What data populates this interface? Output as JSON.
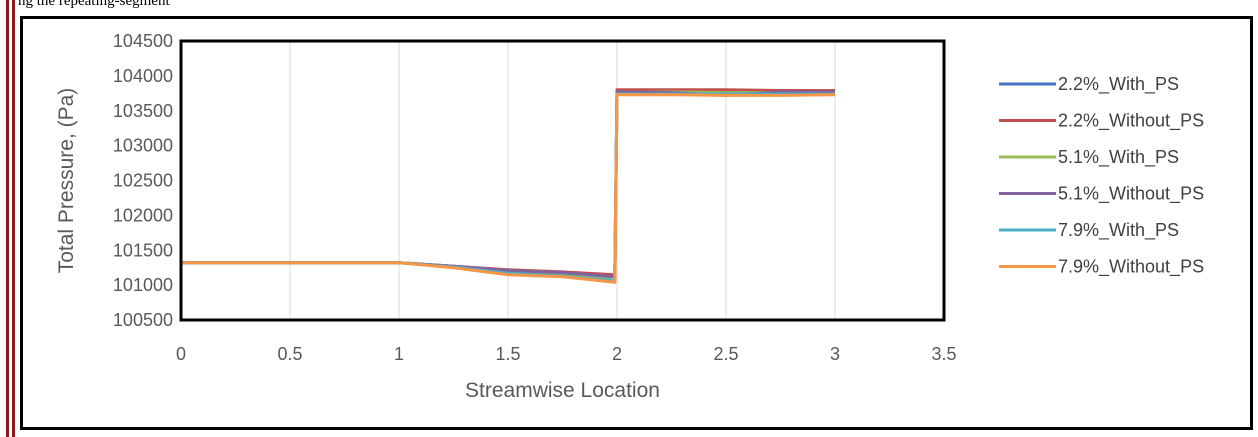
{
  "caption_fragment": "ng the repeating-segment",
  "chart_data": {
    "type": "line",
    "title": "",
    "xlabel": "Streamwise Location",
    "ylabel": "Total Pressure, (Pa)",
    "xlim": [
      0,
      3.5
    ],
    "ylim": [
      100500,
      104500
    ],
    "x_ticks": [
      "0",
      "0.5",
      "1",
      "1.5",
      "2",
      "2.5",
      "3",
      "3.5"
    ],
    "y_ticks": [
      "104500",
      "104000",
      "103500",
      "103000",
      "102500",
      "102000",
      "101500",
      "101000",
      "100500"
    ],
    "grid": "vertical",
    "legend_position": "right",
    "series": [
      {
        "name": "2.2%_With_PS",
        "color": "#4472c4",
        "x": [
          0,
          1,
          1.25,
          1.5,
          1.75,
          1.99,
          2.0,
          2.25,
          2.5,
          2.75,
          3.0
        ],
        "y": [
          101320,
          101320,
          101270,
          101210,
          101170,
          101120,
          103780,
          103780,
          103780,
          103780,
          103780
        ]
      },
      {
        "name": "2.2%_Without_PS",
        "color": "#c0504d",
        "x": [
          0,
          1,
          1.25,
          1.5,
          1.75,
          1.99,
          2.0,
          2.25,
          2.5,
          2.75,
          3.0
        ],
        "y": [
          101320,
          101320,
          101270,
          101220,
          101190,
          101150,
          103800,
          103800,
          103800,
          103790,
          103790
        ]
      },
      {
        "name": "5.1%_With_PS",
        "color": "#9bbb59",
        "x": [
          0,
          1,
          1.25,
          1.5,
          1.75,
          1.99,
          2.0,
          2.25,
          2.5,
          2.75,
          3.0
        ],
        "y": [
          101320,
          101320,
          101270,
          101200,
          101160,
          101100,
          103760,
          103770,
          103760,
          103760,
          103760
        ]
      },
      {
        "name": "5.1%_Without_PS",
        "color": "#8064a2",
        "x": [
          0,
          1,
          1.25,
          1.5,
          1.75,
          1.99,
          2.0,
          2.25,
          2.5,
          2.75,
          3.0
        ],
        "y": [
          101320,
          101320,
          101270,
          101210,
          101180,
          101120,
          103770,
          103760,
          103720,
          103770,
          103770
        ]
      },
      {
        "name": "7.9%_With_PS",
        "color": "#4bacc6",
        "x": [
          0,
          1,
          1.25,
          1.5,
          1.75,
          1.99,
          2.0,
          2.25,
          2.5,
          2.75,
          3.0
        ],
        "y": [
          101320,
          101320,
          101260,
          101170,
          101130,
          101060,
          103740,
          103740,
          103740,
          103740,
          103740
        ]
      },
      {
        "name": "7.9%_Without_PS",
        "color": "#f79646",
        "x": [
          0,
          1,
          1.25,
          1.5,
          1.75,
          1.99,
          2.0,
          2.25,
          2.5,
          2.75,
          3.0
        ],
        "y": [
          101320,
          101320,
          101250,
          101150,
          101120,
          101040,
          103730,
          103730,
          103720,
          103720,
          103730
        ]
      }
    ]
  }
}
